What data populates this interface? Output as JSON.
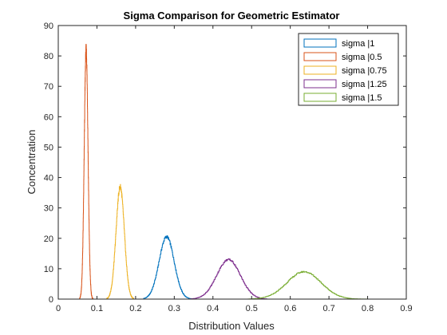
{
  "chart_data": {
    "type": "line",
    "title": "Sigma Comparison for Geometric Estimator",
    "xlabel": "Distribution Values",
    "ylabel": "Concentration",
    "xlim": [
      0,
      0.9
    ],
    "ylim": [
      0,
      90
    ],
    "xticks": [
      "0",
      "0.1",
      "0.2",
      "0.3",
      "0.4",
      "0.5",
      "0.6",
      "0.7",
      "0.8",
      "0.9"
    ],
    "yticks": [
      "0",
      "10",
      "20",
      "30",
      "40",
      "50",
      "60",
      "70",
      "80",
      "90"
    ],
    "grid": false,
    "legend_position": "top-right",
    "series": [
      {
        "name": "sigma |1",
        "color": "#0072BD",
        "mean": 0.28,
        "sd": 0.0195,
        "peak": 20.5,
        "x_range": [
          0.22,
          0.35
        ]
      },
      {
        "name": "sigma |0.5",
        "color": "#D95319",
        "mean": 0.072,
        "sd": 0.0049,
        "peak": 82,
        "x_range": [
          0.055,
          0.09
        ]
      },
      {
        "name": "sigma |0.75",
        "color": "#EDB120",
        "mean": 0.16,
        "sd": 0.0107,
        "peak": 37,
        "x_range": [
          0.125,
          0.195
        ]
      },
      {
        "name": "sigma |1.25",
        "color": "#7E2F8E",
        "mean": 0.44,
        "sd": 0.0305,
        "peak": 13,
        "x_range": [
          0.34,
          0.54
        ]
      },
      {
        "name": "sigma |1.5",
        "color": "#77AC30",
        "mean": 0.635,
        "sd": 0.044,
        "peak": 9,
        "x_range": [
          0.49,
          0.85
        ]
      }
    ]
  }
}
